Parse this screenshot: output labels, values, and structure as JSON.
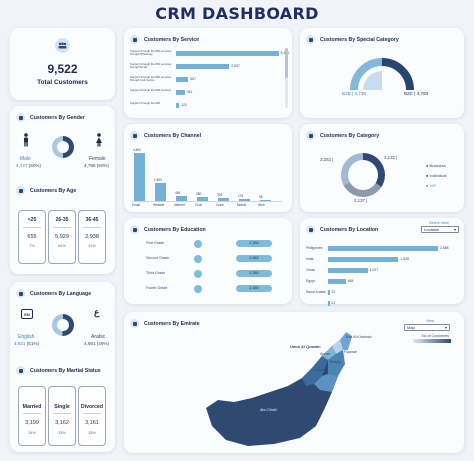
{
  "title": "CRM DASHBOARD",
  "total": {
    "value": "9,522",
    "label": "Total Customers"
  },
  "gender": {
    "title": "Customers By Gender",
    "male_label": "Male",
    "male_value": "4,727",
    "male_pct": "(50%)",
    "female_label": "Female",
    "female_value": "4,795",
    "female_pct": "(50%)"
  },
  "age": {
    "title": "Customers By Age",
    "groups": [
      {
        "label": "<25",
        "value": "655",
        "pct": "7%"
      },
      {
        "label": "26-35",
        "value": "5,929",
        "pct": "62%"
      },
      {
        "label": "36-45",
        "value": "2,938",
        "pct": "31%"
      }
    ]
  },
  "language": {
    "title": "Customers By Language",
    "english_label": "English",
    "english_value": "4,831",
    "english_pct": "(51%)",
    "arabic_label": "Arabic",
    "arabic_value": "4,691",
    "arabic_pct": "(49%)"
  },
  "marital": {
    "title": "Customers By Martial Status",
    "groups": [
      {
        "label": "Married",
        "value": "3,199",
        "pct": "34%"
      },
      {
        "label": "Single",
        "value": "3,162",
        "pct": "33%"
      },
      {
        "label": "Divorced",
        "value": "3,161",
        "pct": "33%"
      }
    ]
  },
  "service": {
    "title": "Customers By Service",
    "items": [
      {
        "label": "Support through the 800 services through Whatsapp",
        "value": "5,434",
        "frac": 1.0
      },
      {
        "label": "Support through the 800 services through Email",
        "value": "2,837",
        "frac": 0.52
      },
      {
        "label": "Support through the 800 services through Call Centre",
        "value": "667",
        "frac": 0.12
      },
      {
        "label": "Support through the 800 services",
        "value": "461",
        "frac": 0.085
      },
      {
        "label": "Support through the 800",
        "value": "123",
        "frac": 0.03
      }
    ]
  },
  "special": {
    "title": "Customers By Special Category",
    "b2b_label": "B2B",
    "b2b_value": "4,739",
    "b2c_label": "B2C",
    "b2c_value": "4,783"
  },
  "channel": {
    "title": "Customers By Channel",
    "items": [
      {
        "label": "Email",
        "value": "4,800"
      },
      {
        "label": "Website",
        "value": "1,800"
      },
      {
        "label": "Internet",
        "value": "454"
      },
      {
        "label": "Chat",
        "value": "380"
      },
      {
        "label": "Voice",
        "value": "329"
      },
      {
        "label": "Mobile",
        "value": "178"
      },
      {
        "label": "Web",
        "value": "58"
      }
    ]
  },
  "category": {
    "title": "Customers By Category",
    "business_label": "Business",
    "business_value": "3,253",
    "individual_label": "Individual",
    "individual_value": "3,132",
    "vip_label": "VIP",
    "vip_value": "3,137"
  },
  "education": {
    "title": "Customers By Education",
    "items": [
      {
        "label": "First Grade",
        "value": "2,380"
      },
      {
        "label": "Second Grade",
        "value": "2,382"
      },
      {
        "label": "Third Grade",
        "value": "2,380"
      },
      {
        "label": "Fourth Grade",
        "value": "2,380"
      }
    ]
  },
  "location": {
    "title": "Customers By Location",
    "select_label": "Select View",
    "select_value": "Location",
    "items": [
      {
        "label": "Philippines",
        "value": "2,868",
        "frac": 1.0
      },
      {
        "label": "India",
        "value": "1,828",
        "frac": 0.64
      },
      {
        "label": "Oman",
        "value": "1,027",
        "frac": 0.36
      },
      {
        "label": "Egypt",
        "value": "465",
        "frac": 0.16
      },
      {
        "label": "Saudi Arabia",
        "value": "22",
        "frac": 0.01
      },
      {
        "label": "",
        "value": "21",
        "frac": 0.01
      }
    ]
  },
  "emirate": {
    "title": "Customers By Emirate",
    "view_label": "View",
    "view_value": "Map",
    "legend_label": "No of Customers",
    "places": [
      "Ras Al Khaimah",
      "Umm Al Quwain",
      "Ajman",
      "Sharjah",
      "Dubai",
      "Fujairah",
      "Abu Dhabi"
    ]
  }
}
